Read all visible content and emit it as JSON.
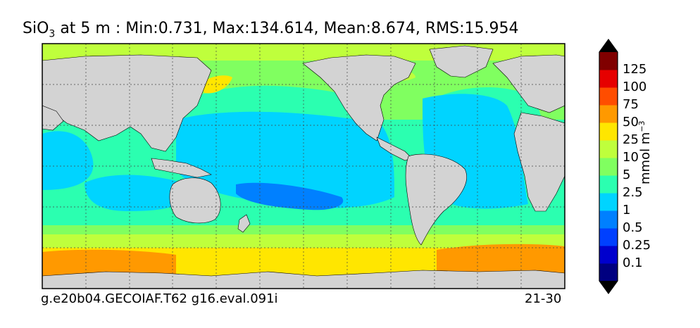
{
  "title": {
    "var_main": "SiO",
    "var_sub": "3",
    "text": " at 5 m : Min:0.731, Max:134.614, Mean:8.674, RMS:15.954"
  },
  "footer": {
    "left": "g.e20b04.GECOIAF.T62 g16.eval.091i",
    "right": "21-30"
  },
  "colorbar": {
    "unit_main": "mmol m",
    "unit_exp": "−3",
    "labels": [
      "125",
      "100",
      "75",
      "50",
      "25",
      "10",
      "5",
      "2.5",
      "1",
      "0.5",
      "0.25",
      "0.1"
    ],
    "colors": [
      "#000080",
      "#0000cd",
      "#0040ff",
      "#0080ff",
      "#00d4ff",
      "#2bffb0",
      "#80ff60",
      "#bfff3c",
      "#ffe600",
      "#ff9900",
      "#ff4d00",
      "#e60000",
      "#800000"
    ],
    "land_color": "#d3d3d3"
  },
  "map": {
    "projection": "cylindrical",
    "gridlines": "dotted"
  }
}
